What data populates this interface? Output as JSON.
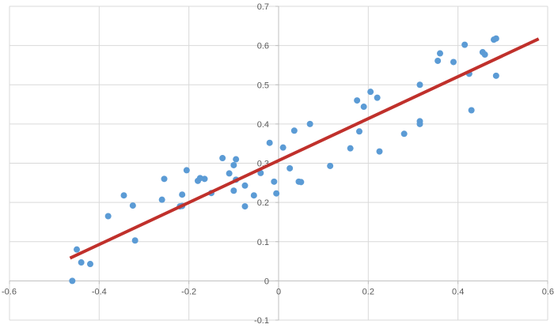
{
  "chart_data": {
    "type": "scatter",
    "title": "",
    "xlabel": "",
    "ylabel": "",
    "xlim": [
      -0.6,
      0.6
    ],
    "ylim": [
      -0.1,
      0.7
    ],
    "x_ticks": [
      "-0.6",
      "-0.4",
      "-0.2",
      "0",
      "0.2",
      "0.4",
      "0.6"
    ],
    "y_ticks": [
      "-0.1",
      "0",
      "0.1",
      "0.2",
      "0.3",
      "0.4",
      "0.5",
      "0.6",
      "0.7"
    ],
    "grid": true,
    "legend": "none",
    "colors": {
      "points": "#5b9bd5",
      "trendline": "#c0302b"
    },
    "series": [
      {
        "points": [
          [
            -0.46,
            0.0
          ],
          [
            -0.45,
            0.08
          ],
          [
            -0.44,
            0.047
          ],
          [
            -0.42,
            0.043
          ],
          [
            -0.38,
            0.165
          ],
          [
            -0.345,
            0.218
          ],
          [
            -0.325,
            0.192
          ],
          [
            -0.32,
            0.103
          ],
          [
            -0.26,
            0.207
          ],
          [
            -0.255,
            0.26
          ],
          [
            -0.22,
            0.19
          ],
          [
            -0.215,
            0.22
          ],
          [
            -0.215,
            0.191
          ],
          [
            -0.205,
            0.282
          ],
          [
            -0.18,
            0.255
          ],
          [
            -0.175,
            0.262
          ],
          [
            -0.165,
            0.26
          ],
          [
            -0.15,
            0.224
          ],
          [
            -0.125,
            0.313
          ],
          [
            -0.11,
            0.274
          ],
          [
            -0.1,
            0.23
          ],
          [
            -0.1,
            0.295
          ],
          [
            -0.095,
            0.31
          ],
          [
            -0.095,
            0.258
          ],
          [
            -0.075,
            0.243
          ],
          [
            -0.075,
            0.19
          ],
          [
            -0.055,
            0.218
          ],
          [
            -0.04,
            0.275
          ],
          [
            -0.02,
            0.352
          ],
          [
            -0.01,
            0.253
          ],
          [
            -0.005,
            0.223
          ],
          [
            0.01,
            0.34
          ],
          [
            0.025,
            0.287
          ],
          [
            0.035,
            0.383
          ],
          [
            0.045,
            0.253
          ],
          [
            0.05,
            0.252
          ],
          [
            0.07,
            0.4
          ],
          [
            0.115,
            0.293
          ],
          [
            0.16,
            0.338
          ],
          [
            0.175,
            0.46
          ],
          [
            0.18,
            0.381
          ],
          [
            0.19,
            0.444
          ],
          [
            0.205,
            0.482
          ],
          [
            0.22,
            0.467
          ],
          [
            0.225,
            0.33
          ],
          [
            0.28,
            0.375
          ],
          [
            0.315,
            0.5
          ],
          [
            0.315,
            0.407
          ],
          [
            0.315,
            0.4
          ],
          [
            0.355,
            0.561
          ],
          [
            0.36,
            0.58
          ],
          [
            0.39,
            0.558
          ],
          [
            0.415,
            0.602
          ],
          [
            0.425,
            0.528
          ],
          [
            0.43,
            0.435
          ],
          [
            0.455,
            0.583
          ],
          [
            0.46,
            0.577
          ],
          [
            0.48,
            0.615
          ],
          [
            0.485,
            0.618
          ],
          [
            0.485,
            0.523
          ]
        ]
      }
    ],
    "trendline": {
      "x": [
        -0.465,
        0.58
      ],
      "y": [
        0.058,
        0.617
      ]
    }
  }
}
